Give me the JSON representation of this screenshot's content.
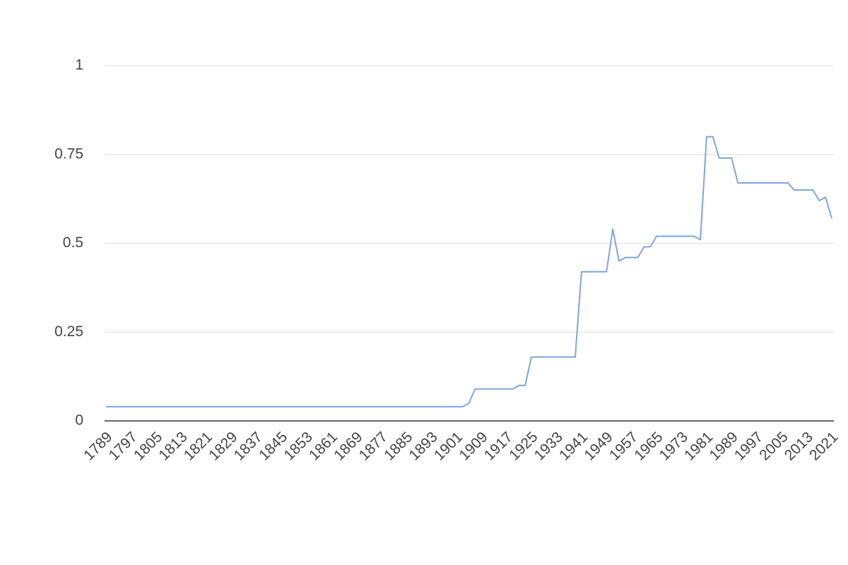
{
  "chart_data": {
    "type": "line",
    "x": [
      1789,
      1791,
      1793,
      1795,
      1797,
      1799,
      1801,
      1803,
      1805,
      1807,
      1809,
      1811,
      1813,
      1815,
      1817,
      1819,
      1821,
      1823,
      1825,
      1827,
      1829,
      1831,
      1833,
      1835,
      1837,
      1839,
      1841,
      1843,
      1845,
      1847,
      1849,
      1851,
      1853,
      1855,
      1857,
      1859,
      1861,
      1863,
      1865,
      1867,
      1869,
      1871,
      1873,
      1875,
      1877,
      1879,
      1881,
      1883,
      1885,
      1887,
      1889,
      1891,
      1893,
      1895,
      1897,
      1899,
      1901,
      1903,
      1905,
      1907,
      1909,
      1911,
      1913,
      1915,
      1917,
      1919,
      1921,
      1923,
      1925,
      1927,
      1929,
      1931,
      1933,
      1935,
      1937,
      1939,
      1941,
      1943,
      1945,
      1947,
      1949,
      1951,
      1953,
      1955,
      1957,
      1959,
      1961,
      1963,
      1965,
      1967,
      1969,
      1971,
      1973,
      1975,
      1977,
      1979,
      1981,
      1983,
      1985,
      1987,
      1989,
      1991,
      1993,
      1995,
      1997,
      1999,
      2001,
      2003,
      2005,
      2007,
      2009,
      2011,
      2013,
      2015,
      2017,
      2019,
      2021
    ],
    "values": [
      0.04,
      0.04,
      0.04,
      0.04,
      0.04,
      0.04,
      0.04,
      0.04,
      0.04,
      0.04,
      0.04,
      0.04,
      0.04,
      0.04,
      0.04,
      0.04,
      0.04,
      0.04,
      0.04,
      0.04,
      0.04,
      0.04,
      0.04,
      0.04,
      0.04,
      0.04,
      0.04,
      0.04,
      0.04,
      0.04,
      0.04,
      0.04,
      0.04,
      0.04,
      0.04,
      0.04,
      0.04,
      0.04,
      0.04,
      0.04,
      0.04,
      0.04,
      0.04,
      0.04,
      0.04,
      0.04,
      0.04,
      0.04,
      0.04,
      0.04,
      0.04,
      0.04,
      0.04,
      0.04,
      0.04,
      0.04,
      0.04,
      0.04,
      0.05,
      0.09,
      0.09,
      0.09,
      0.09,
      0.09,
      0.09,
      0.09,
      0.1,
      0.1,
      0.18,
      0.18,
      0.18,
      0.18,
      0.18,
      0.18,
      0.18,
      0.18,
      0.42,
      0.42,
      0.42,
      0.42,
      0.42,
      0.54,
      0.45,
      0.46,
      0.46,
      0.46,
      0.49,
      0.49,
      0.52,
      0.52,
      0.52,
      0.52,
      0.52,
      0.52,
      0.52,
      0.51,
      0.8,
      0.8,
      0.74,
      0.74,
      0.74,
      0.67,
      0.67,
      0.67,
      0.67,
      0.67,
      0.67,
      0.67,
      0.67,
      0.67,
      0.65,
      0.65,
      0.65,
      0.65,
      0.62,
      0.63,
      0.57
    ],
    "color": "#7ea6dc",
    "xlim": [
      1789,
      2021
    ],
    "xticks": [
      1789,
      1797,
      1805,
      1813,
      1821,
      1829,
      1837,
      1845,
      1853,
      1861,
      1869,
      1877,
      1885,
      1893,
      1901,
      1909,
      1917,
      1925,
      1933,
      1941,
      1949,
      1957,
      1965,
      1973,
      1981,
      1989,
      1997,
      2005,
      2013,
      2021
    ],
    "ylim": [
      0,
      1
    ],
    "yticks": [
      0,
      0.25,
      0.5,
      0.75,
      1
    ],
    "grid": true
  }
}
